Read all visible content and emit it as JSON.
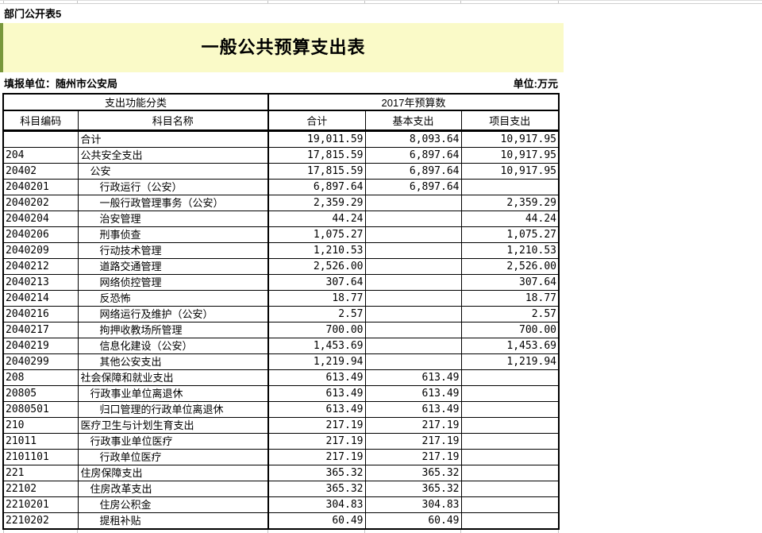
{
  "page": {
    "sheet_label": "部门公开表5",
    "title": "一般公共预算支出表",
    "reporting_unit": "填报单位：随州市公安局",
    "unit_label": "单位:万元"
  },
  "colors": {
    "banner_background": "#FAFAC8",
    "banner_left_strip": "#78973C",
    "gridline_gray": "#C4C4C4",
    "table_border": "#000000"
  },
  "table": {
    "group_headers": [
      "支出功能分类",
      "2017年预算数"
    ],
    "columns": [
      "科目编码",
      "科目名称",
      "合计",
      "基本支出",
      "项目支出"
    ],
    "rows": [
      {
        "code": "",
        "name": "合计",
        "level": 0,
        "total": "19,011.59",
        "basic": "8,093.64",
        "project": "10,917.95"
      },
      {
        "code": "204",
        "name": "公共安全支出",
        "level": 0,
        "total": "17,815.59",
        "basic": "6,897.64",
        "project": "10,917.95"
      },
      {
        "code": "20402",
        "name": "公安",
        "level": 1,
        "total": "17,815.59",
        "basic": "6,897.64",
        "project": "10,917.95"
      },
      {
        "code": "2040201",
        "name": "行政运行（公安）",
        "level": 2,
        "total": "6,897.64",
        "basic": "6,897.64",
        "project": ""
      },
      {
        "code": "2040202",
        "name": "一般行政管理事务（公安）",
        "level": 2,
        "total": "2,359.29",
        "basic": "",
        "project": "2,359.29"
      },
      {
        "code": "2040204",
        "name": "治安管理",
        "level": 2,
        "total": "44.24",
        "basic": "",
        "project": "44.24"
      },
      {
        "code": "2040206",
        "name": "刑事侦查",
        "level": 2,
        "total": "1,075.27",
        "basic": "",
        "project": "1,075.27"
      },
      {
        "code": "2040209",
        "name": "行动技术管理",
        "level": 2,
        "total": "1,210.53",
        "basic": "",
        "project": "1,210.53"
      },
      {
        "code": "2040212",
        "name": "道路交通管理",
        "level": 2,
        "total": "2,526.00",
        "basic": "",
        "project": "2,526.00"
      },
      {
        "code": "2040213",
        "name": "网络侦控管理",
        "level": 2,
        "total": "307.64",
        "basic": "",
        "project": "307.64"
      },
      {
        "code": "2040214",
        "name": "反恐怖",
        "level": 2,
        "total": "18.77",
        "basic": "",
        "project": "18.77"
      },
      {
        "code": "2040216",
        "name": "网络运行及维护（公安）",
        "level": 2,
        "total": "2.57",
        "basic": "",
        "project": "2.57"
      },
      {
        "code": "2040217",
        "name": "拘押收教场所管理",
        "level": 2,
        "total": "700.00",
        "basic": "",
        "project": "700.00"
      },
      {
        "code": "2040219",
        "name": "信息化建设（公安）",
        "level": 2,
        "total": "1,453.69",
        "basic": "",
        "project": "1,453.69"
      },
      {
        "code": "2040299",
        "name": "其他公安支出",
        "level": 2,
        "total": "1,219.94",
        "basic": "",
        "project": "1,219.94"
      },
      {
        "code": "208",
        "name": "社会保障和就业支出",
        "level": 0,
        "total": "613.49",
        "basic": "613.49",
        "project": ""
      },
      {
        "code": "20805",
        "name": "行政事业单位离退休",
        "level": 1,
        "total": "613.49",
        "basic": "613.49",
        "project": ""
      },
      {
        "code": "2080501",
        "name": "归口管理的行政单位离退休",
        "level": 2,
        "total": "613.49",
        "basic": "613.49",
        "project": ""
      },
      {
        "code": "210",
        "name": "医疗卫生与计划生育支出",
        "level": 0,
        "total": "217.19",
        "basic": "217.19",
        "project": ""
      },
      {
        "code": "21011",
        "name": "行政事业单位医疗",
        "level": 1,
        "total": "217.19",
        "basic": "217.19",
        "project": ""
      },
      {
        "code": "2101101",
        "name": "行政单位医疗",
        "level": 2,
        "total": "217.19",
        "basic": "217.19",
        "project": ""
      },
      {
        "code": "221",
        "name": "住房保障支出",
        "level": 0,
        "total": "365.32",
        "basic": "365.32",
        "project": ""
      },
      {
        "code": "22102",
        "name": "住房改革支出",
        "level": 1,
        "total": "365.32",
        "basic": "365.32",
        "project": ""
      },
      {
        "code": "2210201",
        "name": "住房公积金",
        "level": 2,
        "total": "304.83",
        "basic": "304.83",
        "project": ""
      },
      {
        "code": "2210202",
        "name": "提租补贴",
        "level": 2,
        "total": "60.49",
        "basic": "60.49",
        "project": ""
      }
    ]
  }
}
